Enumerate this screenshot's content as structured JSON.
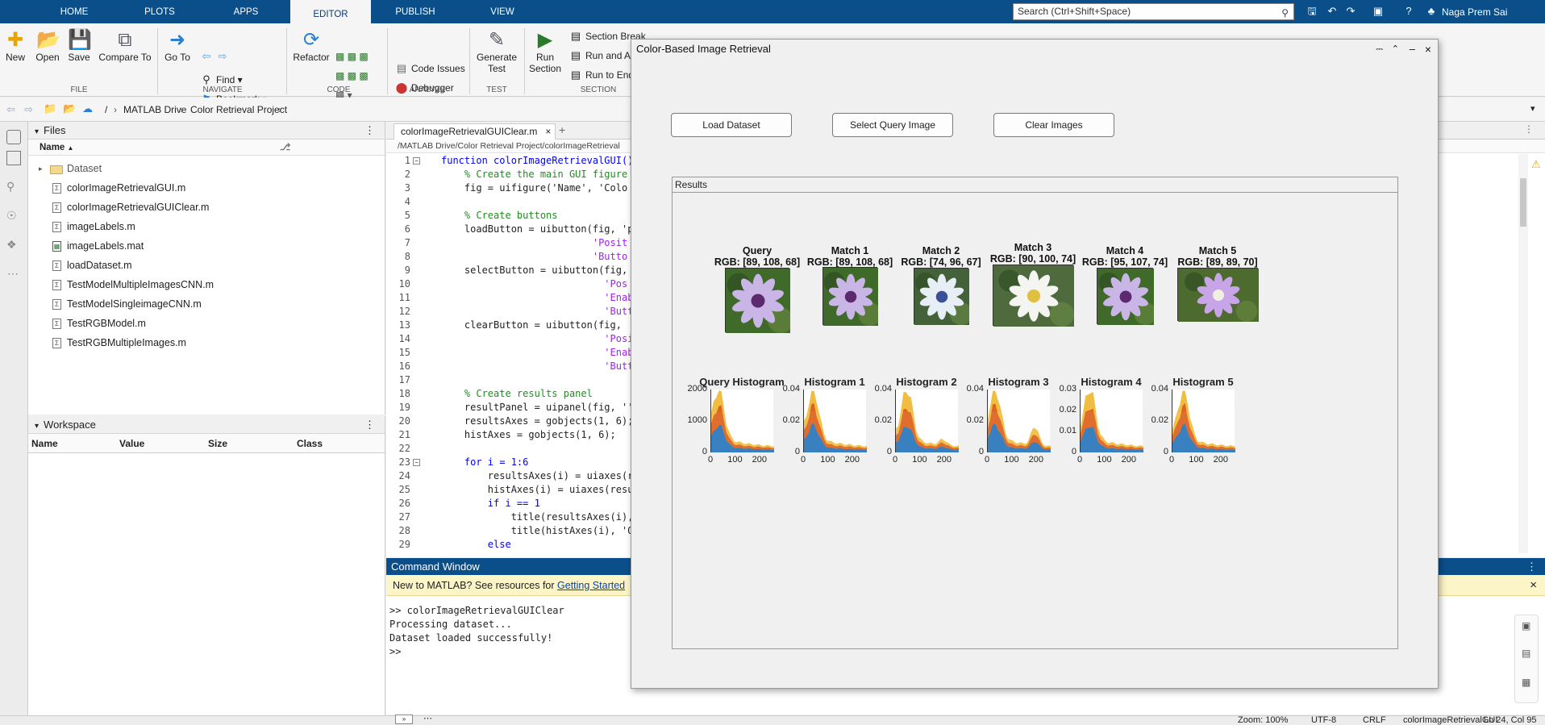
{
  "tabs": [
    "HOME",
    "PLOTS",
    "APPS",
    "EDITOR",
    "PUBLISH",
    "VIEW"
  ],
  "active_tab": "EDITOR",
  "search": {
    "placeholder": "Search (Ctrl+Shift+Space)"
  },
  "user": "Naga Prem Sai",
  "toolstrip": {
    "file": {
      "new": "New",
      "open": "Open",
      "save": "Save",
      "compare": "Compare To",
      "group": "FILE"
    },
    "navigate": {
      "goto": "Go To",
      "find": "Find",
      "bookmark": "Bookmark",
      "group": "NAVIGATE"
    },
    "code": {
      "refactor": "Refactor",
      "group": "CODE"
    },
    "analyze": {
      "code_issues": "Code Issues",
      "debugger": "Debugger",
      "group": "ANALYZE"
    },
    "test": {
      "generate": "Generate",
      "generate2": "Test",
      "group": "TEST"
    },
    "section": {
      "run": "Run",
      "run2": "Section",
      "section_break": "Section Break",
      "run_and_advance": "Run and A",
      "run_to_end": "Run to End",
      "group": "SECTION"
    }
  },
  "breadcrumb": [
    "/",
    "MATLAB Drive",
    "Color Retrieval Project"
  ],
  "files": {
    "title": "Files",
    "column": "Name",
    "items": [
      {
        "name": "Dataset",
        "type": "folder"
      },
      {
        "name": "colorImageRetrievalGUI.m",
        "type": "m"
      },
      {
        "name": "colorImageRetrievalGUIClear.m",
        "type": "m"
      },
      {
        "name": "imageLabels.m",
        "type": "m"
      },
      {
        "name": "imageLabels.mat",
        "type": "mat"
      },
      {
        "name": "loadDataset.m",
        "type": "m"
      },
      {
        "name": "TestModelMultipleImagesCNN.m",
        "type": "m"
      },
      {
        "name": "TestModelSingleimageCNN.m",
        "type": "m"
      },
      {
        "name": "TestRGBModel.m",
        "type": "m"
      },
      {
        "name": "TestRGBMultipleImages.m",
        "type": "m"
      }
    ]
  },
  "workspace": {
    "title": "Workspace",
    "columns": [
      "Name",
      "Value",
      "Size",
      "Class"
    ]
  },
  "editor": {
    "tab": "colorImageRetrievalGUIClear.m",
    "path": "/MATLAB Drive/Color Retrieval Project/colorImageRetrieval",
    "lines": [
      "function colorImageRetrievalGUI()",
      "    % Create the main GUI figure",
      "    fig = uifigure('Name', 'Colo",
      "",
      "    % Create buttons",
      "    loadButton = uibutton(fig, 'p",
      "                          'Posit",
      "                          'Butto",
      "    selectButton = uibutton(fig,",
      "                            'Pos",
      "                            'Enab",
      "                            'Butt",
      "    clearButton = uibutton(fig,",
      "                            'Posi",
      "                            'Enabl",
      "                            'Butto",
      "",
      "    % Create results panel",
      "    resultPanel = uipanel(fig, ''",
      "    resultsAxes = gobjects(1, 6);",
      "    histAxes = gobjects(1, 6);",
      "",
      "    for i = 1:6",
      "        resultsAxes(i) = uiaxes(r",
      "        histAxes(i) = uiaxes(resu",
      "        if i == 1",
      "            title(resultsAxes(i),",
      "            title(histAxes(i), 'Q",
      "        else"
    ]
  },
  "command_window": {
    "title": "Command Window",
    "banner": "New to MATLAB? See resources for ",
    "banner_link": "Getting Started",
    "lines": [
      ">> colorImageRetrievalGUIClear",
      "Processing dataset...",
      "Dataset loaded successfully!",
      ">>"
    ]
  },
  "status": {
    "zoom": "Zoom: 100%",
    "encoding": "UTF-8",
    "eol": "CRLF",
    "file": "colorImageRetrievalGUI",
    "position": "Ln 24, Col 95"
  },
  "figure": {
    "title": "Color-Based Image Retrieval",
    "buttons": {
      "load": "Load Dataset",
      "select": "Select Query Image",
      "clear": "Clear Images"
    },
    "panel_title": "Results",
    "results": [
      {
        "title": "Query",
        "rgb": "RGB: [89, 108, 68]",
        "flower": "purple"
      },
      {
        "title": "Match 1",
        "rgb": "RGB: [89, 108, 68]",
        "flower": "purple"
      },
      {
        "title": "Match 2",
        "rgb": "RGB: [74, 96, 67]",
        "flower": "white-blue"
      },
      {
        "title": "Match 3",
        "rgb": "RGB: [90, 100, 74]",
        "flower": "white"
      },
      {
        "title": "Match 4",
        "rgb": "RGB: [95, 107, 74]",
        "flower": "purple"
      },
      {
        "title": "Match 5",
        "rgb": "RGB: [89, 89, 70]",
        "flower": "lilac"
      }
    ],
    "histograms": [
      {
        "title": "Query Histogram",
        "yticks": [
          "2000",
          "1000",
          "0"
        ],
        "xticks": [
          "0",
          "100",
          "200"
        ]
      },
      {
        "title": "Histogram 1",
        "yticks": [
          "0.04",
          "0.02",
          "0"
        ],
        "xticks": [
          "0",
          "100",
          "200"
        ]
      },
      {
        "title": "Histogram 2",
        "yticks": [
          "0.04",
          "0.02",
          "0"
        ],
        "xticks": [
          "0",
          "100",
          "200"
        ]
      },
      {
        "title": "Histogram 3",
        "yticks": [
          "0.04",
          "0.02",
          "0"
        ],
        "xticks": [
          "0",
          "100",
          "200"
        ]
      },
      {
        "title": "Histogram 4",
        "yticks": [
          "0.03",
          "0.02",
          "0.01",
          "0"
        ],
        "xticks": [
          "0",
          "100",
          "200"
        ]
      },
      {
        "title": "Histogram 5",
        "yticks": [
          "0.04",
          "0.02",
          "0"
        ],
        "xticks": [
          "0",
          "100",
          "200"
        ]
      }
    ]
  },
  "colors": {
    "tabbar": "#0b4f8a",
    "hist_blue": "#1f77c4",
    "hist_red": "#d9541a",
    "hist_yellow": "#edb120",
    "link": "#0645ad"
  }
}
